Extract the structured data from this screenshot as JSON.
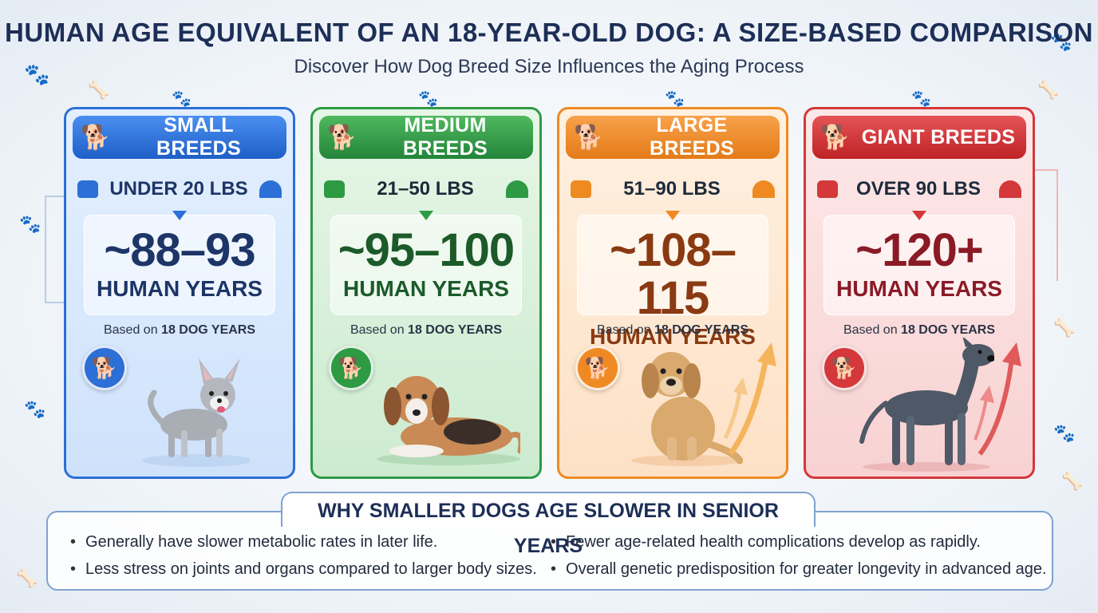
{
  "header": {
    "title": "HUMAN AGE EQUIVALENT OF AN 18-YEAR-OLD DOG: A SIZE-BASED COMPARISON",
    "subtitle": "Discover How Dog Breed Size Influences the Aging Process"
  },
  "cards": [
    {
      "title": "SMALL BREEDS",
      "weight": "UNDER 20 LBS",
      "age": "~88–93",
      "unit": "HUMAN YEARS",
      "based_prefix": "Based on",
      "based_value": "18 DOG YEARS",
      "color": "#2c6fd6"
    },
    {
      "title": "MEDIUM BREEDS",
      "weight": "21–50 LBS",
      "age": "~95–100",
      "unit": "HUMAN YEARS",
      "based_prefix": "Based on",
      "based_value": "18 DOG YEARS",
      "color": "#2e9a44"
    },
    {
      "title": "LARGE BREEDS",
      "weight": "51–90 LBS",
      "age": "~108–115",
      "unit": "HUMAN YEARS",
      "based_prefix": "Based on",
      "based_value": "18 DOG YEARS",
      "color": "#ef8a22"
    },
    {
      "title": "GIANT BREEDS",
      "weight": "OVER 90 LBS",
      "age": "~120+",
      "unit": "HUMAN YEARS",
      "based_prefix": "Based on",
      "based_value": "18 DOG YEARS",
      "color": "#d4383a"
    }
  ],
  "why": {
    "title": "WHY SMALLER DOGS AGE SLOWER IN SENIOR YEARS",
    "reasons": [
      "Generally have slower metabolic rates in later life.",
      "Less stress on joints and organs compared to larger body sizes.",
      "Fewer age-related health complications develop as rapidly.",
      "Overall genetic predisposition for greater longevity in advanced age."
    ]
  },
  "icons": [
    "paw-icon",
    "scale-icon",
    "gauge-icon",
    "dog-icon",
    "bone-icon",
    "trend-arrow-icon"
  ]
}
